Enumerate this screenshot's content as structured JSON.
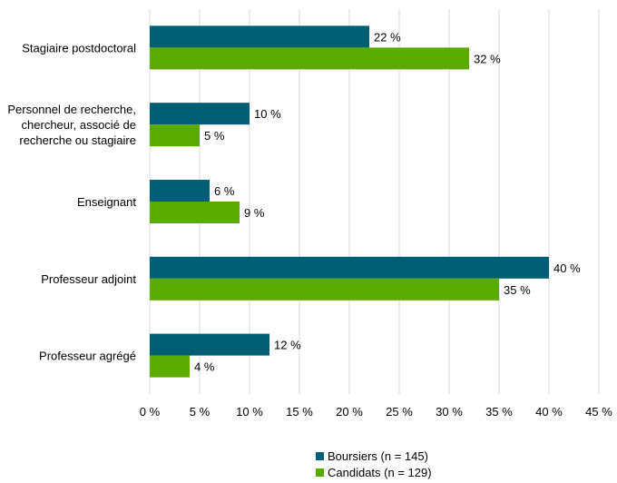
{
  "chart_data": {
    "type": "bar",
    "orientation": "horizontal",
    "categories": [
      "Stagiaire postdoctoral",
      "Personnel de recherche, chercheur, associé de recherche ou stagiaire",
      "Enseignant",
      "Professeur adjoint",
      "Professeur agrégé"
    ],
    "category_lines": [
      [
        "Stagiaire postdoctoral"
      ],
      [
        "Personnel de recherche,",
        "chercheur, associé de",
        "recherche ou stagiaire"
      ],
      [
        "Enseignant"
      ],
      [
        "Professeur adjoint"
      ],
      [
        "Professeur agrégé"
      ]
    ],
    "series": [
      {
        "name": "Boursiers (n = 145)",
        "color": "#005f73",
        "values": [
          22,
          10,
          6,
          40,
          12
        ],
        "labels": [
          "22 %",
          "10 %",
          "6 %",
          "40 %",
          "12 %"
        ]
      },
      {
        "name": "Candidats (n = 129)",
        "color": "#5aaa00",
        "values": [
          32,
          5,
          9,
          35,
          4
        ],
        "labels": [
          "32 %",
          "5 %",
          "9 %",
          "35 %",
          "4 %"
        ]
      }
    ],
    "xlim": [
      0,
      45
    ],
    "xticks": [
      0,
      5,
      10,
      15,
      20,
      25,
      30,
      35,
      40,
      45
    ],
    "xtick_labels": [
      "0 %",
      "5 %",
      "10 %",
      "15 %",
      "20 %",
      "25 %",
      "30 %",
      "35 %",
      "40 %",
      "45 %"
    ],
    "title": "",
    "xlabel": "",
    "ylabel": "",
    "grid": "vertical",
    "legend_position": "bottom",
    "gridline_color": "#d9d9d9"
  }
}
